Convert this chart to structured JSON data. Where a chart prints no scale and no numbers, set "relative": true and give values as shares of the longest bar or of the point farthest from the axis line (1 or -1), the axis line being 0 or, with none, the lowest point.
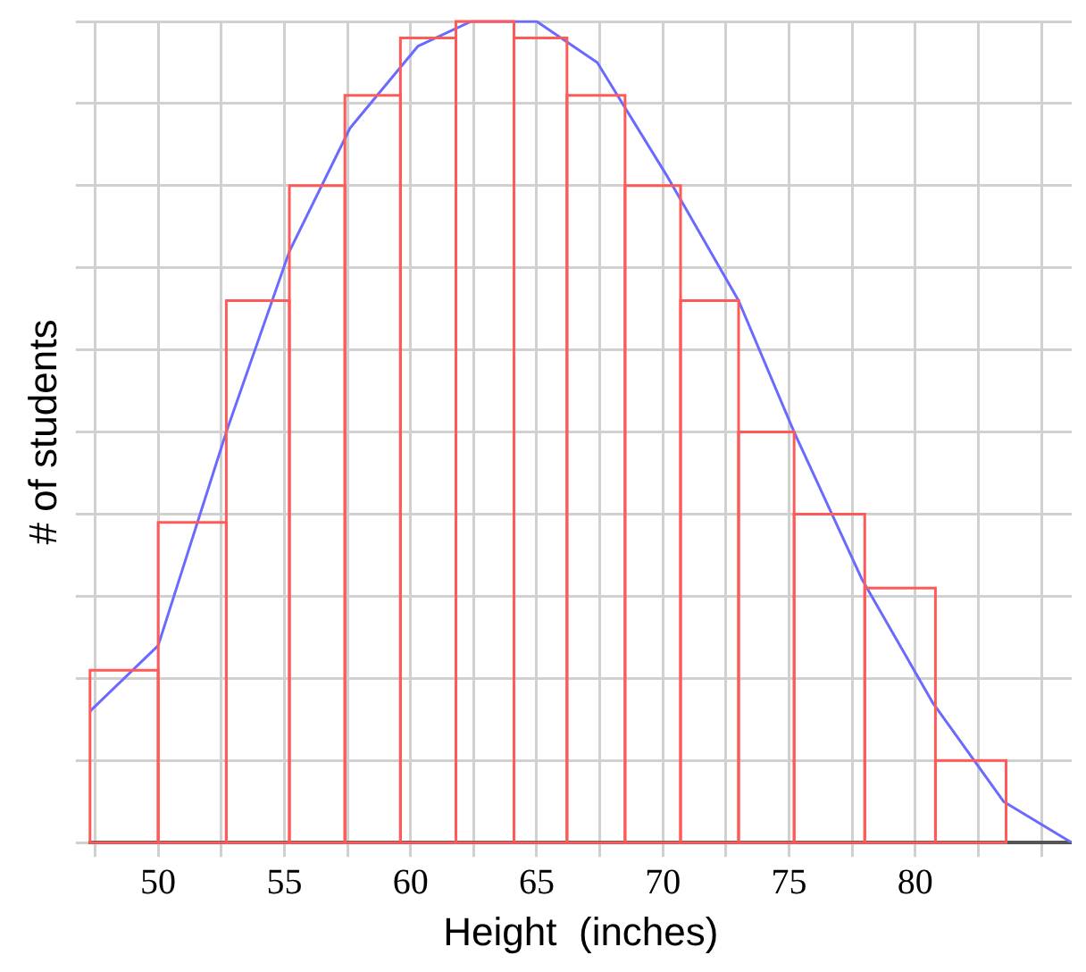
{
  "chart_data": {
    "type": "histogram",
    "xlabel": "Height  (inches)",
    "ylabel": "# of students",
    "relative": true,
    "bins": [
      47.3,
      50,
      52.7,
      55.2,
      57.4,
      59.6,
      61.8,
      64.1,
      66.2,
      68.5,
      70.7,
      73,
      75.2,
      78,
      80.8,
      83.6
    ],
    "values": [
      0.21,
      0.39,
      0.66,
      0.8,
      0.91,
      0.98,
      1,
      0.98,
      0.91,
      0.8,
      0.66,
      0.5,
      0.4,
      0.31,
      0.1
    ],
    "color": "#ff5a5a",
    "xlim": [
      47.3,
      86.2
    ],
    "xticks": [
      {
        "value": 47.5,
        "label": null
      },
      50,
      {
        "value": 52.5,
        "label": null
      },
      55,
      {
        "value": 57.5,
        "label": null
      },
      60,
      {
        "value": 62.5,
        "label": null
      },
      65,
      {
        "value": 67.5,
        "label": null
      },
      70,
      {
        "value": 72.5,
        "label": null
      },
      75,
      {
        "value": 77.5,
        "label": null
      },
      80,
      {
        "value": 82.5,
        "label": null
      },
      {
        "value": 85,
        "label": null
      }
    ],
    "grid": true,
    "marker": "none",
    "series": [
      {
        "type": "line",
        "color": "#6a6aff",
        "x": [
          47.3,
          50,
          52.7,
          55.2,
          57.6,
          60.3,
          62.4,
          65,
          67.4,
          70.2,
          73,
          75.2,
          77.9,
          80.7,
          83.5,
          86.2
        ],
        "values": [
          0.16,
          0.24,
          0.5,
          0.72,
          0.87,
          0.97,
          1,
          1,
          0.95,
          0.81,
          0.66,
          0.5,
          0.32,
          0.17,
          0.05,
          0
        ]
      }
    ]
  }
}
